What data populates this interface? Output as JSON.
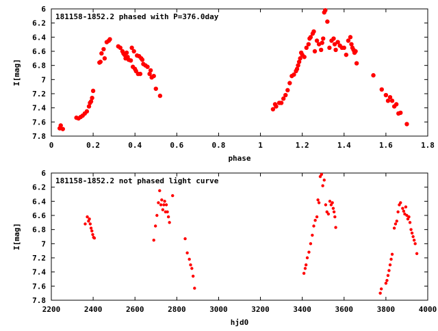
{
  "chart_data": [
    {
      "type": "scatter",
      "title": "181158-1852.2 phased with P=376.0day",
      "xlabel": "phase",
      "ylabel": "I[mag]",
      "xlim": [
        0,
        1.8
      ],
      "ylim": [
        7.8,
        6.0
      ],
      "y_inverted": true,
      "x_ticks": [
        "0",
        "0.2",
        "0.4",
        "0.6",
        "0.8",
        "1",
        "1.2",
        "1.4",
        "1.6",
        "1.8"
      ],
      "y_ticks": [
        "6",
        "6.2",
        "6.4",
        "6.6",
        "6.8",
        "7",
        "7.2",
        "7.4",
        "7.6",
        "7.8"
      ],
      "grid": false,
      "marker_color": "#ff0000",
      "series": [
        {
          "x": [
            0.04,
            0.045,
            0.055,
            0.12,
            0.13,
            0.14,
            0.15,
            0.16,
            0.17,
            0.18,
            0.185,
            0.19,
            0.195,
            0.2,
            0.23,
            0.235,
            0.24,
            0.25,
            0.255,
            0.265,
            0.275,
            0.28,
            0.32,
            0.33,
            0.34,
            0.345,
            0.35,
            0.355,
            0.36,
            0.365,
            0.37,
            0.38,
            0.385,
            0.39,
            0.395,
            0.4,
            0.405,
            0.41,
            0.415,
            0.42,
            0.425,
            0.43,
            0.435,
            0.44,
            0.45,
            0.46,
            0.47,
            0.475,
            0.48,
            0.49,
            0.5,
            0.52,
            1.06,
            1.07,
            1.075,
            1.09,
            1.1,
            1.11,
            1.12,
            1.13,
            1.14,
            1.15,
            1.16,
            1.17,
            1.175,
            1.18,
            1.185,
            1.19,
            1.195,
            1.2,
            1.21,
            1.22,
            1.23,
            1.235,
            1.24,
            1.25,
            1.255,
            1.26,
            1.27,
            1.28,
            1.29,
            1.295,
            1.3,
            1.305,
            1.31,
            1.32,
            1.33,
            1.34,
            1.35,
            1.355,
            1.36,
            1.37,
            1.38,
            1.39,
            1.4,
            1.41,
            1.42,
            1.43,
            1.435,
            1.44,
            1.445,
            1.45,
            1.455,
            1.46,
            1.54,
            1.58,
            1.6,
            1.61,
            1.62,
            1.63,
            1.64,
            1.65,
            1.66,
            1.67,
            1.7
          ],
          "y": [
            7.69,
            7.65,
            7.7,
            7.54,
            7.55,
            7.53,
            7.51,
            7.48,
            7.45,
            7.38,
            7.33,
            7.31,
            7.26,
            7.16,
            6.76,
            6.75,
            6.63,
            6.57,
            6.7,
            6.47,
            6.45,
            6.43,
            6.53,
            6.55,
            6.6,
            6.63,
            6.65,
            6.7,
            6.62,
            6.68,
            6.72,
            6.73,
            6.55,
            6.82,
            6.6,
            6.85,
            6.88,
            6.66,
            6.92,
            6.67,
            6.92,
            6.7,
            6.72,
            6.78,
            6.8,
            6.82,
            6.92,
            6.87,
            6.97,
            6.95,
            7.13,
            7.23,
            7.42,
            7.35,
            7.38,
            7.33,
            7.33,
            7.27,
            7.22,
            7.15,
            7.05,
            6.95,
            6.93,
            6.88,
            6.85,
            6.8,
            6.75,
            6.7,
            6.62,
            6.65,
            6.68,
            6.55,
            6.5,
            6.42,
            6.4,
            6.35,
            6.32,
            6.6,
            6.45,
            6.5,
            6.58,
            6.48,
            6.42,
            6.05,
            6.02,
            6.18,
            6.55,
            6.45,
            6.42,
            6.5,
            6.58,
            6.47,
            6.52,
            6.55,
            6.55,
            6.65,
            6.45,
            6.4,
            6.5,
            6.55,
            6.58,
            6.62,
            6.6,
            6.77,
            6.94,
            7.14,
            7.22,
            7.3,
            7.25,
            7.3,
            7.38,
            7.35,
            7.48,
            7.47,
            7.63
          ]
        }
      ]
    },
    {
      "type": "scatter",
      "title": "181158-1852.2 not phased light curve",
      "xlabel": "hjd0",
      "ylabel": "I[mag]",
      "xlim": [
        2200,
        4000
      ],
      "ylim": [
        7.8,
        6.0
      ],
      "y_inverted": true,
      "x_ticks": [
        "2200",
        "2400",
        "2600",
        "2800",
        "3000",
        "3200",
        "3400",
        "3600",
        "3800",
        "4000"
      ],
      "y_ticks": [
        "6",
        "6.2",
        "6.4",
        "6.6",
        "6.8",
        "7",
        "7.2",
        "7.4",
        "7.6",
        "7.8"
      ],
      "grid": false,
      "marker_color": "#ff0000",
      "series": [
        {
          "x": [
            2362,
            2372,
            2378,
            2382,
            2386,
            2390,
            2394,
            2398,
            2402,
            2406,
            2690,
            2698,
            2705,
            2712,
            2718,
            2724,
            2728,
            2733,
            2738,
            2742,
            2746,
            2750,
            2755,
            2760,
            2765,
            2780,
            2840,
            2850,
            2860,
            2866,
            2872,
            2878,
            2885,
            3408,
            3414,
            3418,
            3424,
            3432,
            3440,
            3448,
            3455,
            3462,
            3470,
            3475,
            3480,
            3486,
            3492,
            3498,
            3505,
            3512,
            3518,
            3525,
            3532,
            3538,
            3544,
            3548,
            3552,
            3556,
            3560,
            3773,
            3778,
            3800,
            3805,
            3810,
            3815,
            3820,
            3825,
            3830,
            3840,
            3846,
            3852,
            3858,
            3864,
            3870,
            3880,
            3885,
            3890,
            3895,
            3900,
            3905,
            3910,
            3915,
            3920,
            3925,
            3930,
            3935,
            3940,
            3948
          ],
          "y": [
            6.72,
            6.62,
            6.68,
            6.65,
            6.72,
            6.78,
            6.82,
            6.87,
            6.91,
            6.92,
            6.95,
            6.75,
            6.6,
            6.42,
            6.25,
            6.45,
            6.38,
            6.52,
            6.45,
            6.4,
            6.55,
            6.45,
            6.55,
            6.62,
            6.7,
            6.32,
            6.93,
            7.13,
            7.22,
            7.3,
            7.35,
            7.46,
            7.63,
            7.42,
            7.35,
            7.3,
            7.2,
            7.12,
            7.0,
            6.88,
            6.75,
            6.67,
            6.62,
            6.38,
            6.42,
            6.05,
            6.02,
            6.18,
            6.1,
            6.45,
            6.55,
            6.58,
            6.4,
            6.45,
            6.42,
            6.5,
            6.55,
            6.62,
            6.77,
            7.7,
            7.64,
            7.56,
            7.52,
            7.45,
            7.38,
            7.3,
            7.22,
            7.15,
            6.78,
            6.72,
            6.68,
            6.55,
            6.45,
            6.42,
            6.5,
            6.54,
            6.58,
            6.48,
            6.6,
            6.65,
            6.62,
            6.7,
            6.8,
            6.85,
            6.9,
            6.95,
            7.0,
            7.14
          ]
        }
      ]
    }
  ]
}
